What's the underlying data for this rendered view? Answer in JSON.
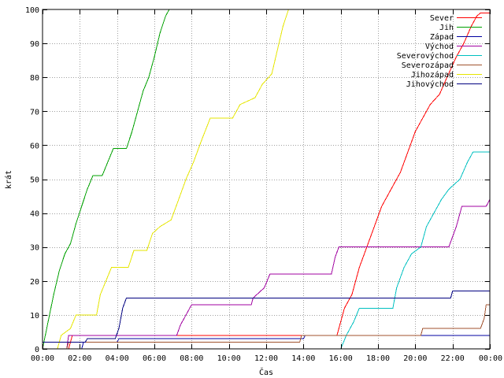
{
  "chart_data": {
    "type": "line",
    "title": "",
    "xlabel": "Čas",
    "ylabel": "krát",
    "xlim": [
      0,
      24
    ],
    "ylim": [
      0,
      100
    ],
    "grid": true,
    "legend_position": "top-right",
    "x_ticks": [
      {
        "value": 0,
        "label": "00:00"
      },
      {
        "value": 2,
        "label": "02:00"
      },
      {
        "value": 4,
        "label": "04:00"
      },
      {
        "value": 6,
        "label": "06:00"
      },
      {
        "value": 8,
        "label": "08:00"
      },
      {
        "value": 10,
        "label": "10:00"
      },
      {
        "value": 12,
        "label": "12:00"
      },
      {
        "value": 14,
        "label": "14:00"
      },
      {
        "value": 16,
        "label": "16:00"
      },
      {
        "value": 18,
        "label": "18:00"
      },
      {
        "value": 20,
        "label": "20:00"
      },
      {
        "value": 22,
        "label": "22:00"
      },
      {
        "value": 24,
        "label": "00:00"
      }
    ],
    "y_ticks": [
      {
        "value": 0,
        "label": "0"
      },
      {
        "value": 10,
        "label": "10"
      },
      {
        "value": 20,
        "label": "20"
      },
      {
        "value": 30,
        "label": "30"
      },
      {
        "value": 40,
        "label": "40"
      },
      {
        "value": 50,
        "label": "50"
      },
      {
        "value": 60,
        "label": "60"
      },
      {
        "value": 70,
        "label": "70"
      },
      {
        "value": 80,
        "label": "80"
      },
      {
        "value": 90,
        "label": "90"
      },
      {
        "value": 100,
        "label": "100"
      }
    ],
    "series": [
      {
        "name": "Sever",
        "color": "#ff0000",
        "points": [
          [
            1.4,
            0
          ],
          [
            1.5,
            2
          ],
          [
            1.6,
            4
          ],
          [
            15.8,
            4
          ],
          [
            15.9,
            6
          ],
          [
            16.2,
            12
          ],
          [
            16.6,
            16
          ],
          [
            17.0,
            24
          ],
          [
            17.4,
            30
          ],
          [
            17.8,
            36
          ],
          [
            18.2,
            42
          ],
          [
            18.6,
            46
          ],
          [
            19.2,
            52
          ],
          [
            19.6,
            58
          ],
          [
            20.0,
            64
          ],
          [
            20.4,
            68
          ],
          [
            20.8,
            72
          ],
          [
            21.3,
            75
          ],
          [
            21.7,
            80
          ],
          [
            22.2,
            86
          ],
          [
            22.6,
            90
          ],
          [
            23.0,
            95
          ],
          [
            23.3,
            98
          ],
          [
            23.5,
            99
          ],
          [
            24,
            99
          ]
        ]
      },
      {
        "name": "Jih",
        "color": "#00a000",
        "points": [
          [
            0,
            0
          ],
          [
            0.3,
            8
          ],
          [
            0.6,
            16
          ],
          [
            0.9,
            23
          ],
          [
            1.2,
            28
          ],
          [
            1.5,
            31
          ],
          [
            1.8,
            37
          ],
          [
            2.1,
            42
          ],
          [
            2.4,
            47
          ],
          [
            2.7,
            51
          ],
          [
            3.2,
            51
          ],
          [
            3.5,
            55
          ],
          [
            3.8,
            59
          ],
          [
            4.5,
            59
          ],
          [
            4.8,
            64
          ],
          [
            5.1,
            70
          ],
          [
            5.4,
            76
          ],
          [
            5.7,
            80
          ],
          [
            6.0,
            86
          ],
          [
            6.3,
            93
          ],
          [
            6.6,
            98
          ],
          [
            6.8,
            100
          ]
        ]
      },
      {
        "name": "Západ",
        "color": "#0000a0",
        "points": [
          [
            2.1,
            0
          ],
          [
            2.2,
            2
          ],
          [
            4.0,
            2
          ],
          [
            4.1,
            3
          ],
          [
            14.0,
            3
          ],
          [
            14.1,
            4
          ],
          [
            24,
            4
          ]
        ]
      },
      {
        "name": "Východ",
        "color": "#a000a0",
        "points": [
          [
            1.3,
            0
          ],
          [
            1.4,
            4
          ],
          [
            7.2,
            4
          ],
          [
            7.4,
            7
          ],
          [
            7.7,
            10
          ],
          [
            8.0,
            13
          ],
          [
            11.2,
            13
          ],
          [
            11.3,
            15
          ],
          [
            11.9,
            18
          ],
          [
            12.2,
            22
          ],
          [
            15.5,
            22
          ],
          [
            15.7,
            27
          ],
          [
            15.9,
            30
          ],
          [
            21.8,
            30
          ],
          [
            22.2,
            36
          ],
          [
            22.5,
            42
          ],
          [
            23.8,
            42
          ],
          [
            24,
            44
          ]
        ]
      },
      {
        "name": "Severovýchod",
        "color": "#00c0c0",
        "points": [
          [
            16.0,
            0
          ],
          [
            16.3,
            4
          ],
          [
            16.7,
            8
          ],
          [
            17.0,
            12
          ],
          [
            18.8,
            12
          ],
          [
            19.0,
            18
          ],
          [
            19.4,
            24
          ],
          [
            19.8,
            28
          ],
          [
            20.3,
            30
          ],
          [
            20.6,
            36
          ],
          [
            21.0,
            40
          ],
          [
            21.4,
            44
          ],
          [
            21.8,
            47
          ],
          [
            22.4,
            50
          ],
          [
            22.8,
            55
          ],
          [
            23.1,
            58
          ],
          [
            24,
            58
          ]
        ]
      },
      {
        "name": "Severozápad",
        "color": "#a0522d",
        "points": [
          [
            1.3,
            0
          ],
          [
            1.4,
            2
          ],
          [
            13.8,
            2
          ],
          [
            13.9,
            4
          ],
          [
            20.3,
            4
          ],
          [
            20.4,
            6
          ],
          [
            23.5,
            6
          ],
          [
            23.7,
            9
          ],
          [
            23.8,
            13
          ],
          [
            24,
            13
          ]
        ]
      },
      {
        "name": "Jihozápad",
        "color": "#e6e600",
        "points": [
          [
            0.8,
            0
          ],
          [
            1.0,
            4
          ],
          [
            1.5,
            6
          ],
          [
            1.8,
            10
          ],
          [
            2.9,
            10
          ],
          [
            3.1,
            16
          ],
          [
            3.4,
            20
          ],
          [
            3.7,
            24
          ],
          [
            4.6,
            24
          ],
          [
            4.9,
            29
          ],
          [
            5.6,
            29
          ],
          [
            5.9,
            34
          ],
          [
            6.3,
            36
          ],
          [
            6.9,
            38
          ],
          [
            7.3,
            44
          ],
          [
            7.7,
            50
          ],
          [
            8.1,
            55
          ],
          [
            8.5,
            61
          ],
          [
            9.0,
            68
          ],
          [
            10.2,
            68
          ],
          [
            10.6,
            72
          ],
          [
            11.4,
            74
          ],
          [
            11.8,
            78
          ],
          [
            12.3,
            81
          ],
          [
            12.6,
            88
          ],
          [
            12.9,
            95
          ],
          [
            13.2,
            100
          ]
        ]
      },
      {
        "name": "Jihovýchod",
        "color": "#000080",
        "points": [
          [
            0,
            2
          ],
          [
            2.3,
            2
          ],
          [
            2.4,
            3
          ],
          [
            3.9,
            3
          ],
          [
            4.1,
            6
          ],
          [
            4.3,
            12
          ],
          [
            4.5,
            15
          ],
          [
            21.9,
            15
          ],
          [
            22.0,
            17
          ],
          [
            24,
            17
          ]
        ]
      }
    ]
  }
}
